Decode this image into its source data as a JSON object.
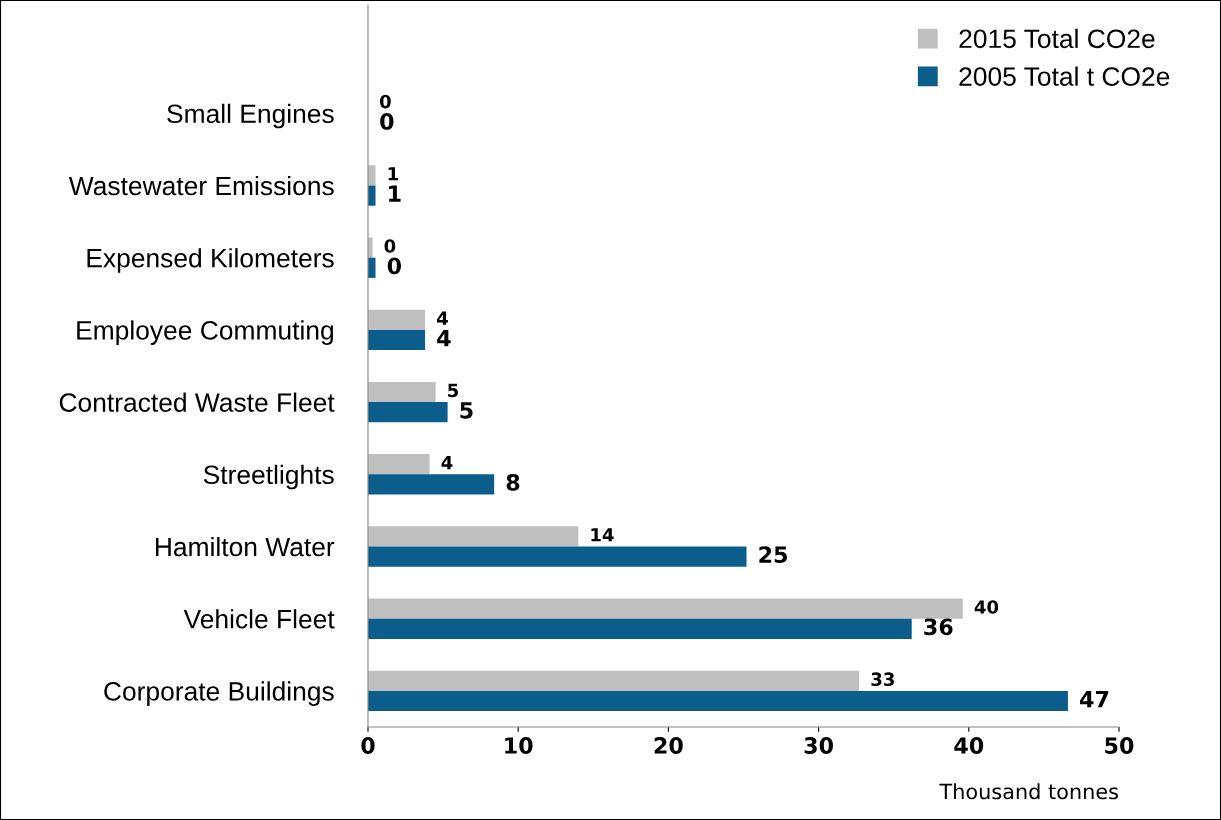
{
  "chart_data": {
    "type": "bar",
    "orientation": "horizontal",
    "xlabel": "Thousand tonnes",
    "categories": [
      null,
      "Small Engines",
      "Wastewater Emissions",
      "Expensed Kilometers",
      "Employee Commuting",
      "Contracted Waste Fleet",
      "Streetlights",
      "Hamilton Water",
      "Vehicle Fleet",
      "Corporate Buildings"
    ],
    "series": [
      {
        "name": "2015 Total CO2e",
        "color": "#bfbfbf",
        "values": [
          null,
          0,
          0.5,
          0.3,
          3.8,
          4.5,
          4.1,
          14.0,
          39.6,
          32.7
        ],
        "value_labels": [
          null,
          "0",
          "1",
          "0",
          "4",
          "5",
          "4",
          "14",
          "40",
          "33"
        ]
      },
      {
        "name": "2005 Total t CO2e",
        "color": "#0b5e8c",
        "values": [
          null,
          0,
          0.5,
          0.5,
          3.8,
          5.3,
          8.4,
          25.2,
          36.2,
          46.6
        ],
        "value_labels": [
          null,
          "0",
          "1",
          "0",
          "4",
          "5",
          "8",
          "25",
          "36",
          "47"
        ]
      }
    ],
    "xlim": [
      0,
      50
    ],
    "xticks": [
      0,
      10,
      20,
      30,
      40,
      50
    ],
    "grid": false,
    "legend": "top right"
  }
}
